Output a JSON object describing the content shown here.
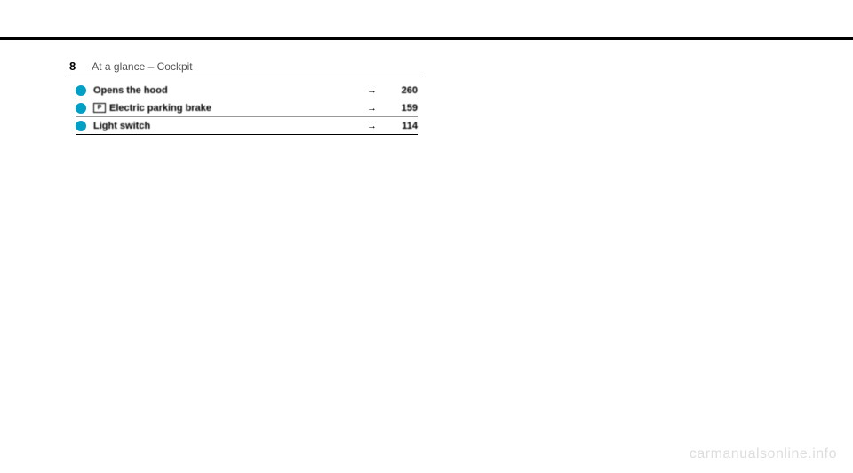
{
  "header": {
    "page_number": "8",
    "section_title": "At a glance – Cockpit"
  },
  "rows": [
    {
      "label": "Opens the hood",
      "has_icon": false,
      "page_ref": "260"
    },
    {
      "label": "Electric parking brake",
      "has_icon": true,
      "icon_text": "P",
      "page_ref": "159"
    },
    {
      "label": "Light switch",
      "has_icon": false,
      "page_ref": "114"
    }
  ],
  "watermark": "carmanualsonline.info",
  "colors": {
    "bullet": "#00a0c6",
    "text": "#000000",
    "header_text": "#555555",
    "watermark": "#dddddd",
    "background": "#ffffff"
  }
}
